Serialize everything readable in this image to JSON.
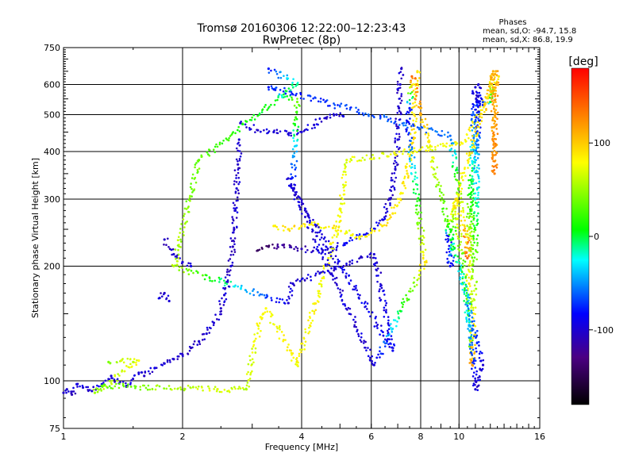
{
  "chart_data": {
    "type": "scatter",
    "title": "Tromsø 20160306 12:22:00–12:23:43",
    "subtitle": "RwPretec (8p)",
    "phase_info": {
      "heading": "Phases",
      "line_o": "mean, sd,O: -94.7, 15.8",
      "line_x": "mean, sd,X:  86.8, 19.9"
    },
    "xlabel": "Frequency [MHz]",
    "ylabel": "Stationary phase Virtual Height [km]",
    "xscale": "log",
    "yscale": "log",
    "xlim": [
      1,
      16
    ],
    "ylim": [
      75,
      750
    ],
    "x_ticks": [
      1,
      2,
      4,
      6,
      8,
      10,
      16
    ],
    "y_ticks": [
      75,
      100,
      200,
      300,
      400,
      500,
      600,
      750
    ],
    "x_grid": [
      2,
      4,
      6,
      8,
      10
    ],
    "y_grid": [
      100,
      200,
      300,
      400,
      500,
      600
    ],
    "grid": true,
    "colorbar": {
      "label": "[deg]",
      "range": [
        -180,
        180
      ],
      "ticks": [
        -100,
        0,
        100
      ]
    },
    "series": [
      {
        "values": [
          [
            1.0,
            93,
            -105
          ],
          [
            1.02,
            95,
            -100
          ],
          [
            1.05,
            92,
            -110
          ],
          [
            1.08,
            98,
            -95
          ],
          [
            1.12,
            96,
            -100
          ],
          [
            1.18,
            94,
            -100
          ],
          [
            1.25,
            98,
            -95
          ],
          [
            1.32,
            103,
            -100
          ],
          [
            1.45,
            97,
            -100
          ],
          [
            1.55,
            105,
            -100
          ],
          [
            1.6,
            103,
            -105
          ],
          [
            1.7,
            108,
            -100
          ],
          [
            1.8,
            111,
            -100
          ],
          [
            1.9,
            114,
            -105
          ],
          [
            2.0,
            117,
            -105
          ],
          [
            2.1,
            122,
            -110
          ],
          [
            2.2,
            127,
            -105
          ],
          [
            2.3,
            133,
            -100
          ],
          [
            2.4,
            142,
            -100
          ],
          [
            2.5,
            155,
            -105
          ],
          [
            2.55,
            168,
            -100
          ],
          [
            2.6,
            182,
            -105
          ],
          [
            2.65,
            200,
            -100
          ],
          [
            2.68,
            225,
            -110
          ],
          [
            2.7,
            250,
            -105
          ],
          [
            2.72,
            280,
            -100
          ],
          [
            2.74,
            320,
            -100
          ],
          [
            2.76,
            370,
            -105
          ],
          [
            2.78,
            430,
            -100
          ]
        ]
      },
      {
        "values": [
          [
            2.8,
            475,
            -100
          ],
          [
            3.1,
            455,
            -105
          ],
          [
            3.4,
            450,
            -100
          ],
          [
            3.7,
            445,
            -100
          ],
          [
            4.0,
            450,
            -100
          ],
          [
            4.3,
            470,
            -100
          ],
          [
            4.6,
            490,
            -100
          ],
          [
            4.9,
            500,
            -100
          ],
          [
            5.1,
            495,
            -95
          ]
        ]
      },
      {
        "values": [
          [
            1.8,
            235,
            -105
          ],
          [
            1.9,
            215,
            -100
          ],
          [
            2.0,
            205,
            -100
          ],
          [
            2.1,
            200,
            -95
          ]
        ]
      },
      {
        "values": [
          [
            1.75,
            165,
            -100
          ],
          [
            1.8,
            170,
            -105
          ],
          [
            1.85,
            162,
            -100
          ]
        ]
      },
      {
        "values": [
          [
            3.1,
            220,
            -150
          ],
          [
            3.3,
            225,
            -140
          ],
          [
            3.6,
            227,
            -120
          ],
          [
            4.0,
            222,
            -110
          ],
          [
            4.4,
            220,
            -100
          ],
          [
            4.8,
            223,
            -95
          ],
          [
            5.2,
            230,
            -90
          ],
          [
            5.6,
            240,
            -85
          ],
          [
            6.0,
            248,
            -90
          ],
          [
            6.4,
            265,
            -95
          ],
          [
            6.7,
            300,
            -100
          ],
          [
            6.9,
            360,
            -105
          ],
          [
            7.0,
            430,
            -100
          ],
          [
            7.05,
            520,
            -105
          ],
          [
            7.1,
            600,
            -100
          ],
          [
            7.15,
            660,
            -105
          ]
        ]
      },
      {
        "values": [
          [
            3.4,
            255,
            85
          ],
          [
            3.7,
            250,
            90
          ],
          [
            4.0,
            255,
            90
          ],
          [
            4.4,
            258,
            80
          ],
          [
            4.8,
            252,
            90
          ],
          [
            5.2,
            245,
            75
          ],
          [
            5.6,
            238,
            80
          ],
          [
            6.0,
            245,
            85
          ],
          [
            6.4,
            255,
            90
          ],
          [
            6.8,
            275,
            90
          ],
          [
            7.1,
            300,
            85
          ],
          [
            7.4,
            350,
            88
          ],
          [
            7.6,
            420,
            90
          ],
          [
            7.7,
            500,
            90
          ],
          [
            7.8,
            600,
            88
          ],
          [
            7.85,
            650,
            90
          ]
        ]
      },
      {
        "values": [
          [
            1.3,
            112,
            40
          ],
          [
            1.4,
            113,
            70
          ],
          [
            1.5,
            112,
            60
          ],
          [
            1.55,
            113,
            80
          ],
          [
            1.2,
            93,
            50
          ],
          [
            1.25,
            97,
            30
          ],
          [
            2.45,
            95,
            70
          ],
          [
            2.9,
            95,
            60
          ],
          [
            3.15,
            147,
            80
          ],
          [
            3.2,
            150,
            85
          ],
          [
            3.25,
            155,
            80
          ],
          [
            3.9,
            110,
            80
          ],
          [
            5.0,
            270,
            80
          ],
          [
            5.2,
            380,
            70
          ],
          [
            10.2,
            420,
            80
          ],
          [
            12.6,
            630,
            90
          ]
        ]
      },
      {
        "values": [
          [
            3.3,
            660,
            -80
          ],
          [
            3.9,
            600,
            -10
          ],
          [
            2.2,
            380,
            30
          ],
          [
            1.9,
            200,
            60
          ],
          [
            3.7,
            160,
            -100
          ],
          [
            3.8,
            180,
            -100
          ],
          [
            6.1,
            215,
            -100
          ],
          [
            6.8,
            120,
            -90
          ],
          [
            3.8,
            320,
            -100
          ],
          [
            3.9,
            540,
            40
          ],
          [
            3.3,
            590,
            -80
          ],
          [
            9.5,
            440,
            -60
          ],
          [
            10.5,
            230,
            130
          ],
          [
            10.5,
            210,
            140
          ],
          [
            10.6,
            250,
            60
          ],
          [
            11.0,
            590,
            -100
          ],
          [
            11.2,
            600,
            -100
          ],
          [
            10.6,
            180,
            90
          ],
          [
            10.6,
            140,
            -30
          ],
          [
            10.8,
            110,
            120
          ],
          [
            11.2,
            560,
            -100
          ],
          [
            11.5,
            530,
            -80
          ],
          [
            12.0,
            540,
            0
          ],
          [
            12.2,
            650,
            110
          ],
          [
            12.3,
            350,
            130
          ],
          [
            12.4,
            650,
            110
          ],
          [
            9.4,
            258,
            70
          ],
          [
            9.4,
            240,
            -90
          ],
          [
            9.5,
            200,
            -90
          ],
          [
            9.8,
            300,
            100
          ],
          [
            11.0,
            100,
            -100
          ],
          [
            11.0,
            95,
            -100
          ],
          [
            11.5,
            110,
            -100
          ],
          [
            7.6,
            630,
            140
          ],
          [
            7.5,
            520,
            -80
          ],
          [
            7.4,
            480,
            -90
          ],
          [
            8.2,
            205,
            90
          ],
          [
            6.1,
            110,
            -100
          ],
          [
            3.7,
            340,
            -100
          ]
        ]
      }
    ]
  }
}
